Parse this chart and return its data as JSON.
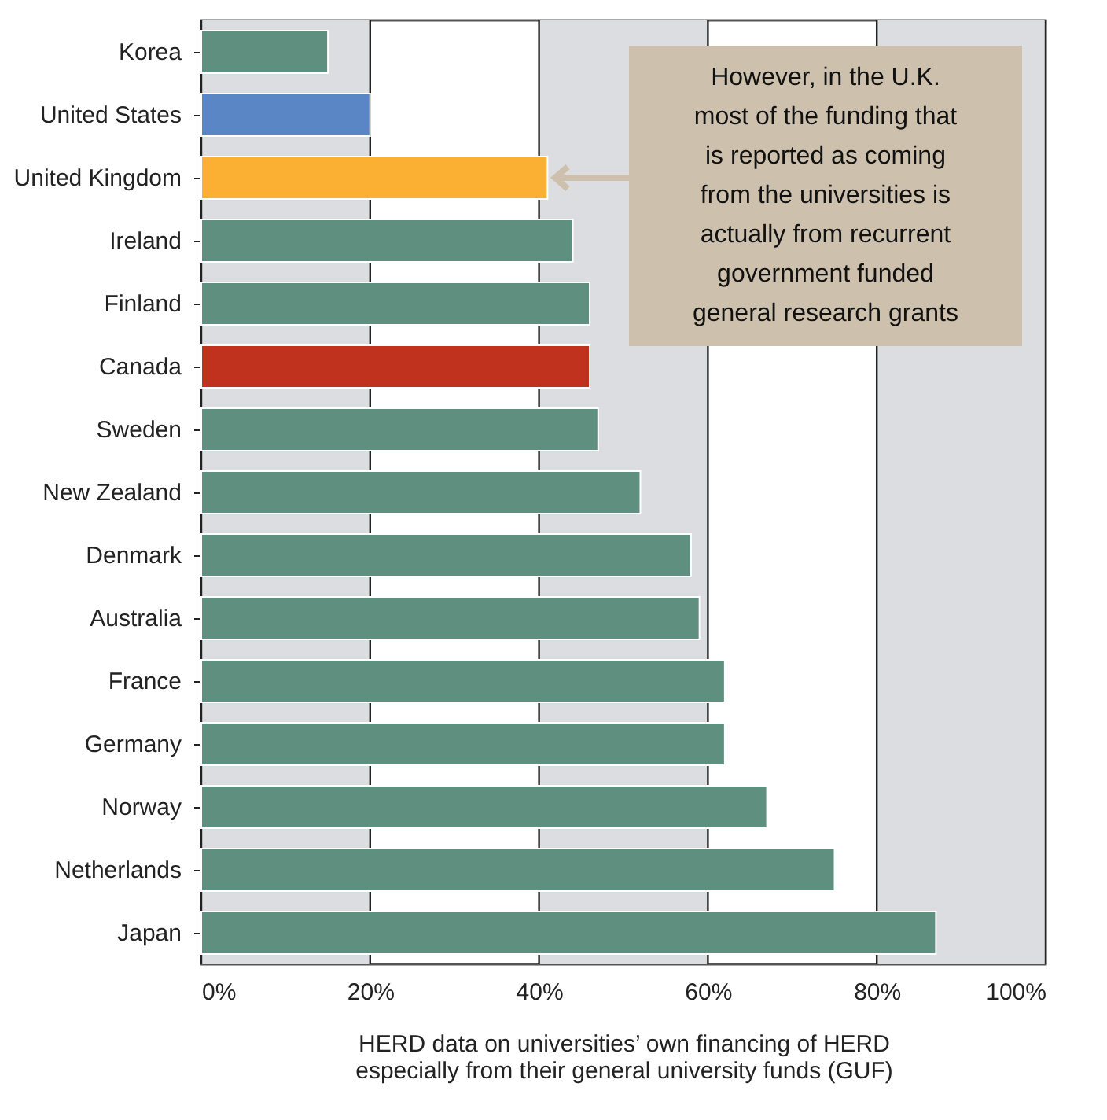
{
  "chart_data": {
    "type": "bar",
    "orientation": "horizontal",
    "xlabel": "HERD data on universities’ own financing of HERD especially from their general university funds (GUF)",
    "categories": [
      "Korea",
      "United States",
      "United Kingdom",
      "Ireland",
      "Finland",
      "Canada",
      "Sweden",
      "New Zealand",
      "Denmark",
      "Australia",
      "France",
      "Germany",
      "Norway",
      "Netherlands",
      "Japan"
    ],
    "values": [
      15,
      20,
      41,
      44,
      46,
      46,
      47,
      52,
      58,
      59,
      62,
      62,
      67,
      75,
      87
    ],
    "colors": [
      "#5f8f7e",
      "#5a86c6",
      "#fbb034",
      "#5f8f7e",
      "#5f8f7e",
      "#c0321e",
      "#5f8f7e",
      "#5f8f7e",
      "#5f8f7e",
      "#5f8f7e",
      "#5f8f7e",
      "#5f8f7e",
      "#5f8f7e",
      "#5f8f7e",
      "#5f8f7e"
    ],
    "xlim": [
      0,
      100
    ],
    "xticks": [
      {
        "value": 0,
        "label": "0%"
      },
      {
        "value": 20,
        "label": "20%"
      },
      {
        "value": 40,
        "label": "40%"
      },
      {
        "value": 60,
        "label": "60%"
      },
      {
        "value": 80,
        "label": "80%"
      },
      {
        "value": 100,
        "label": "100%"
      }
    ],
    "grid": "x",
    "bands": [
      {
        "axis": "x",
        "from": 0,
        "to": 20,
        "color": "#dcdde0"
      },
      {
        "axis": "x",
        "from": 40,
        "to": 60,
        "color": "#dcdde0"
      },
      {
        "axis": "x",
        "from": 80,
        "to": 100,
        "color": "#dcdde0"
      }
    ],
    "annotations": [
      {
        "text": "However, in the U.K. most of the funding that is reported as coming from the universities is actually from recurrent government funded general research grants",
        "x": 41,
        "y": "United Kingdom"
      }
    ]
  }
}
